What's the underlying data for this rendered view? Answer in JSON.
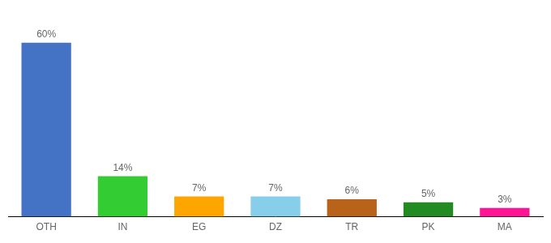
{
  "chart_data": {
    "type": "bar",
    "categories": [
      "OTH",
      "IN",
      "EG",
      "DZ",
      "TR",
      "PK",
      "MA"
    ],
    "values": [
      60,
      14,
      7,
      7,
      6,
      5,
      3
    ],
    "value_labels": [
      "60%",
      "14%",
      "7%",
      "7%",
      "6%",
      "5%",
      "3%"
    ],
    "colors": [
      "#4472c4",
      "#33cc33",
      "#ffa500",
      "#87ceeb",
      "#b8621a",
      "#228b22",
      "#ff1493"
    ],
    "ylim": [
      0,
      68
    ],
    "data_labels": true,
    "tick_labels": "x",
    "grid": false
  }
}
